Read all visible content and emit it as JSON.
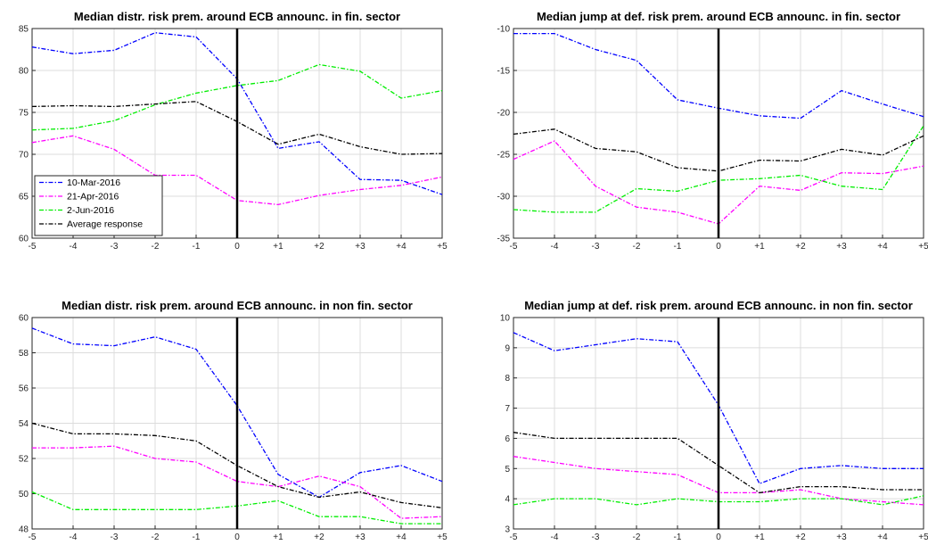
{
  "chart_data": [
    {
      "type": "line",
      "title": "Median distr. risk prem. around ECB announc. in fin. sector",
      "xlabel": "",
      "ylabel": "",
      "categories": [
        "-5",
        "-4",
        "-3",
        "-2",
        "-1",
        "0",
        "+1",
        "+2",
        "+3",
        "+4",
        "+5"
      ],
      "ylim": [
        60,
        85
      ],
      "yticks": [
        60,
        65,
        70,
        75,
        80,
        85
      ],
      "grid": true,
      "vline_at": "0",
      "legend": "lower-left",
      "series": [
        {
          "name": "10-Mar-2016",
          "color": "#0000ff",
          "values": [
            82.8,
            82.0,
            82.4,
            84.5,
            84.0,
            79.0,
            70.7,
            71.5,
            67.0,
            66.9,
            65.2
          ]
        },
        {
          "name": "21-Apr-2016",
          "color": "#ff00ff",
          "values": [
            71.4,
            72.2,
            70.6,
            67.5,
            67.5,
            64.5,
            64.0,
            65.1,
            65.8,
            66.3,
            67.3
          ]
        },
        {
          "name": "2-Jun-2016",
          "color": "#00ee00",
          "values": [
            72.9,
            73.1,
            74.0,
            75.9,
            77.3,
            78.2,
            78.8,
            80.7,
            79.9,
            76.7,
            77.6
          ]
        },
        {
          "name": "Average response",
          "color": "#000000",
          "values": [
            75.7,
            75.8,
            75.7,
            76.0,
            76.3,
            73.9,
            71.2,
            72.4,
            70.9,
            70.0,
            70.1
          ]
        }
      ]
    },
    {
      "type": "line",
      "title": "Median jump at def. risk prem. around ECB announc. in fin. sector",
      "xlabel": "",
      "ylabel": "",
      "categories": [
        "-5",
        "-4",
        "-3",
        "-2",
        "-1",
        "0",
        "+1",
        "+2",
        "+3",
        "+4",
        "+5"
      ],
      "ylim": [
        -35,
        -10
      ],
      "yticks": [
        -35,
        -30,
        -25,
        -20,
        -15,
        -10
      ],
      "grid": true,
      "vline_at": "0",
      "series": [
        {
          "color": "#0000ff",
          "values": [
            -10.6,
            -10.6,
            -12.5,
            -13.8,
            -18.5,
            -19.5,
            -20.4,
            -20.7,
            -17.4,
            -19.0,
            -20.5
          ]
        },
        {
          "color": "#ff00ff",
          "values": [
            -25.6,
            -23.4,
            -28.8,
            -31.3,
            -31.9,
            -33.3,
            -28.8,
            -29.3,
            -27.2,
            -27.3,
            -26.4
          ]
        },
        {
          "color": "#00ee00",
          "values": [
            -31.6,
            -31.9,
            -31.9,
            -29.1,
            -29.4,
            -28.1,
            -27.9,
            -27.5,
            -28.8,
            -29.2,
            -21.6
          ]
        },
        {
          "color": "#000000",
          "values": [
            -22.6,
            -22.0,
            -24.3,
            -24.7,
            -26.6,
            -27.0,
            -25.7,
            -25.8,
            -24.4,
            -25.1,
            -22.8
          ]
        }
      ]
    },
    {
      "type": "line",
      "title": "Median distr. risk prem. around ECB announc. in non fin. sector",
      "xlabel": "",
      "ylabel": "",
      "categories": [
        "-5",
        "-4",
        "-3",
        "-2",
        "-1",
        "0",
        "+1",
        "+2",
        "+3",
        "+4",
        "+5"
      ],
      "ylim": [
        48,
        60
      ],
      "yticks": [
        48,
        50,
        52,
        54,
        56,
        58,
        60
      ],
      "grid": true,
      "vline_at": "0",
      "series": [
        {
          "color": "#0000ff",
          "values": [
            59.4,
            58.5,
            58.4,
            58.9,
            58.2,
            55.0,
            51.1,
            49.8,
            51.2,
            51.6,
            50.7
          ]
        },
        {
          "color": "#ff00ff",
          "values": [
            52.6,
            52.6,
            52.7,
            52.0,
            51.8,
            50.7,
            50.4,
            51.0,
            50.4,
            48.6,
            48.7
          ]
        },
        {
          "color": "#00ee00",
          "values": [
            50.1,
            49.1,
            49.1,
            49.1,
            49.1,
            49.3,
            49.6,
            48.7,
            48.7,
            48.3,
            48.3
          ]
        },
        {
          "color": "#000000",
          "values": [
            54.0,
            53.4,
            53.4,
            53.3,
            53.0,
            51.6,
            50.4,
            49.8,
            50.1,
            49.5,
            49.2
          ]
        }
      ]
    },
    {
      "type": "line",
      "title": "Median jump at def. risk prem. around ECB announc. in non fin. sector",
      "xlabel": "",
      "ylabel": "",
      "categories": [
        "-5",
        "-4",
        "-3",
        "-2",
        "-1",
        "0",
        "+1",
        "+2",
        "+3",
        "+4",
        "+5"
      ],
      "ylim": [
        3,
        10
      ],
      "yticks": [
        3,
        4,
        5,
        6,
        7,
        8,
        9,
        10
      ],
      "grid": true,
      "vline_at": "0",
      "series": [
        {
          "color": "#0000ff",
          "values": [
            9.5,
            8.9,
            9.1,
            9.3,
            9.2,
            7.1,
            4.5,
            5.0,
            5.1,
            5.0,
            5.0
          ]
        },
        {
          "color": "#ff00ff",
          "values": [
            5.4,
            5.2,
            5.0,
            4.9,
            4.8,
            4.2,
            4.2,
            4.3,
            4.0,
            3.9,
            3.8
          ]
        },
        {
          "color": "#00ee00",
          "values": [
            3.8,
            4.0,
            4.0,
            3.8,
            4.0,
            3.9,
            3.9,
            4.0,
            4.0,
            3.8,
            4.1
          ]
        },
        {
          "color": "#000000",
          "values": [
            6.2,
            6.0,
            6.0,
            6.0,
            6.0,
            5.1,
            4.2,
            4.4,
            4.4,
            4.3,
            4.3
          ]
        }
      ]
    }
  ]
}
